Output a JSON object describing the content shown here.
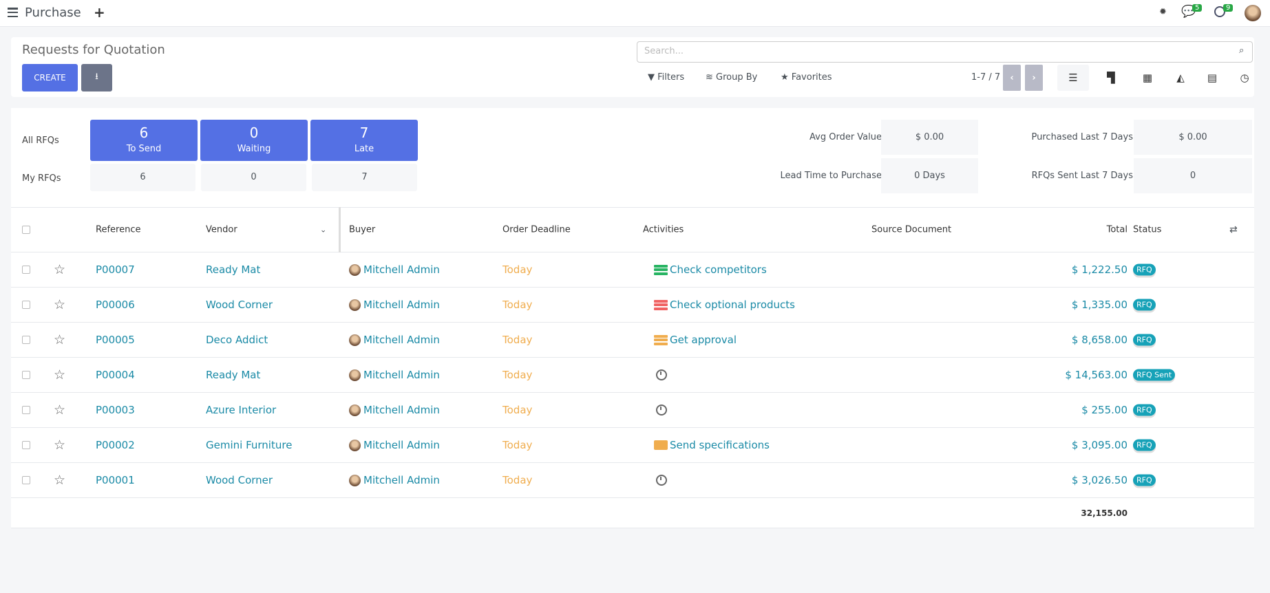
{
  "topbar": {
    "app_title": "Purchase",
    "messages_count": "5",
    "activities_count": "9"
  },
  "control": {
    "breadcrumb": "Requests for Quotation",
    "create_label": "CREATE",
    "search_placeholder": "Search...",
    "filters_label": "Filters",
    "groupby_label": "Group By",
    "favorites_label": "Favorites",
    "pager": "1-7 / 7"
  },
  "dashboard": {
    "all_label": "All RFQs",
    "my_label": "My RFQs",
    "tiles": [
      {
        "count": "6",
        "label": "To Send",
        "my": "6"
      },
      {
        "count": "0",
        "label": "Waiting",
        "my": "0"
      },
      {
        "count": "7",
        "label": "Late",
        "my": "7"
      }
    ],
    "kpis": [
      {
        "label": "Avg Order Value",
        "value": "$ 0.00"
      },
      {
        "label": "Purchased Last 7 Days",
        "value": "$ 0.00"
      },
      {
        "label": "Lead Time to Purchase",
        "value": "0 Days"
      },
      {
        "label": "RFQs Sent Last 7 Days",
        "value": "0"
      }
    ]
  },
  "table": {
    "headers": {
      "reference": "Reference",
      "vendor": "Vendor",
      "buyer": "Buyer",
      "deadline": "Order Deadline",
      "activities": "Activities",
      "source": "Source Document",
      "total": "Total",
      "status": "Status"
    },
    "rows": [
      {
        "ref": "P00007",
        "vendor": "Ready Mat",
        "buyer": "Mitchell Admin",
        "deadline": "Today",
        "activity": "Check competitors",
        "activity_color": "#28b463",
        "total": "$ 1,222.50",
        "status": "RFQ"
      },
      {
        "ref": "P00006",
        "vendor": "Wood Corner",
        "buyer": "Mitchell Admin",
        "deadline": "Today",
        "activity": "Check optional products",
        "activity_color": "#f06262",
        "total": "$ 1,335.00",
        "status": "RFQ"
      },
      {
        "ref": "P00005",
        "vendor": "Deco Addict",
        "buyer": "Mitchell Admin",
        "deadline": "Today",
        "activity": "Get approval",
        "activity_color": "#f0ad4e",
        "total": "$ 8,658.00",
        "status": "RFQ"
      },
      {
        "ref": "P00004",
        "vendor": "Ready Mat",
        "buyer": "Mitchell Admin",
        "deadline": "Today",
        "activity": "",
        "activity_color": "",
        "total": "$ 14,563.00",
        "status": "RFQ Sent"
      },
      {
        "ref": "P00003",
        "vendor": "Azure Interior",
        "buyer": "Mitchell Admin",
        "deadline": "Today",
        "activity": "",
        "activity_color": "",
        "total": "$ 255.00",
        "status": "RFQ"
      },
      {
        "ref": "P00002",
        "vendor": "Gemini Furniture",
        "buyer": "Mitchell Admin",
        "deadline": "Today",
        "activity": "Send specifications",
        "activity_color": "#f0ad4e",
        "activity_icon": "envelope-icon",
        "total": "$ 3,095.00",
        "status": "RFQ"
      },
      {
        "ref": "P00001",
        "vendor": "Wood Corner",
        "buyer": "Mitchell Admin",
        "deadline": "Today",
        "activity": "",
        "activity_color": "",
        "total": "$ 3,026.50",
        "status": "RFQ"
      }
    ],
    "grand_total": "32,155.00"
  }
}
